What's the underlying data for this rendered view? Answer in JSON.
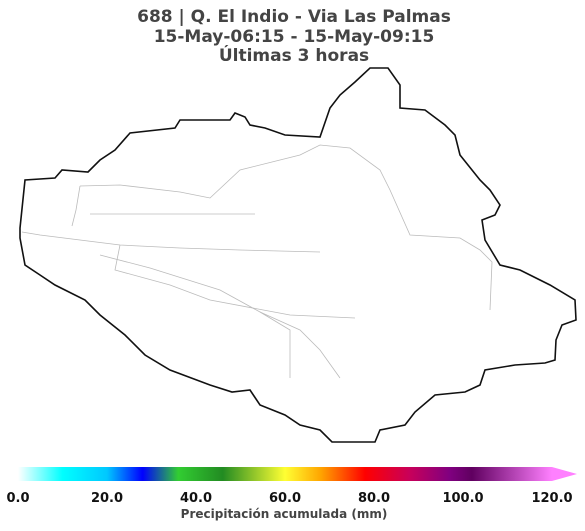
{
  "title": [
    "688 | Q. El Indio - Via Las Palmas",
    "15-May-06:15 - 15-May-09:15",
    "Últimas 3 horas"
  ],
  "colorbar": {
    "label": "Precipitación acumulada (mm)",
    "lim": [
      0,
      120
    ],
    "extend": "max",
    "ticks": [
      {
        "value": 0,
        "label": "0.0"
      },
      {
        "value": 20,
        "label": "20.0"
      },
      {
        "value": 40,
        "label": "40.0"
      },
      {
        "value": 60,
        "label": "60.0"
      },
      {
        "value": 80,
        "label": "80.0"
      },
      {
        "value": 100,
        "label": "100.0"
      },
      {
        "value": 120,
        "label": "120.0"
      }
    ],
    "stops": [
      {
        "value": 0,
        "color": "#ffffff"
      },
      {
        "value": 10,
        "color": "#00ffff"
      },
      {
        "value": 20,
        "color": "#00c8ff"
      },
      {
        "value": 28,
        "color": "#0000ff"
      },
      {
        "value": 36,
        "color": "#32cd32"
      },
      {
        "value": 46,
        "color": "#228b22"
      },
      {
        "value": 60,
        "color": "#ffff33"
      },
      {
        "value": 68,
        "color": "#ffa500"
      },
      {
        "value": 78,
        "color": "#ff0000"
      },
      {
        "value": 88,
        "color": "#c8005a"
      },
      {
        "value": 97,
        "color": "#800080"
      },
      {
        "value": 102,
        "color": "#600060"
      },
      {
        "value": 120,
        "color": "#ff80ff"
      }
    ]
  }
}
